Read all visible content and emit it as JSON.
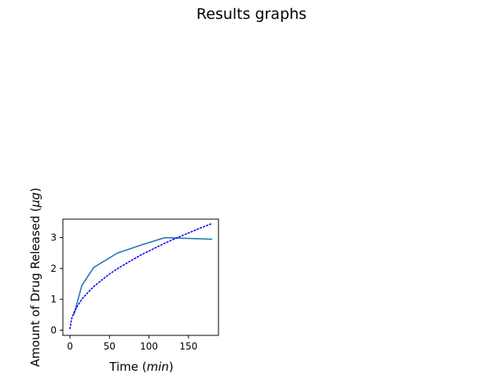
{
  "figure": {
    "title": "Results graphs"
  },
  "chart_data": {
    "type": "line",
    "title": "",
    "xlabel": "Time (min)",
    "xlabel_parts": {
      "prefix": "Time (",
      "math": "min",
      "suffix": ")"
    },
    "ylabel": "Amount of Drug Released (μg)",
    "ylabel_parts": {
      "prefix": "Amount of Drug Released (",
      "math": "μg",
      "suffix": ")"
    },
    "xlim": [
      -9,
      188
    ],
    "ylim": [
      -0.17,
      3.6
    ],
    "xticks": [
      0,
      50,
      100,
      150
    ],
    "yticks": [
      0,
      1,
      2,
      3
    ],
    "grid": false,
    "legend": "none",
    "series": [
      {
        "style": "solid",
        "color": "#1f77b4",
        "x": [
          5,
          15,
          30,
          60,
          90,
          120,
          180
        ],
        "y": [
          0.5,
          1.45,
          2.03,
          2.5,
          2.76,
          3.0,
          2.95
        ]
      },
      {
        "style": "dotted",
        "color": "#0000ff",
        "x": [
          0,
          2,
          5,
          10,
          15,
          20,
          30,
          40,
          50,
          60,
          75,
          90,
          105,
          120,
          135,
          150,
          165,
          180
        ],
        "y": [
          0.05,
          0.36,
          0.57,
          0.81,
          1.0,
          1.15,
          1.41,
          1.62,
          1.82,
          1.99,
          2.22,
          2.44,
          2.63,
          2.82,
          2.99,
          3.15,
          3.31,
          3.46
        ]
      }
    ]
  }
}
